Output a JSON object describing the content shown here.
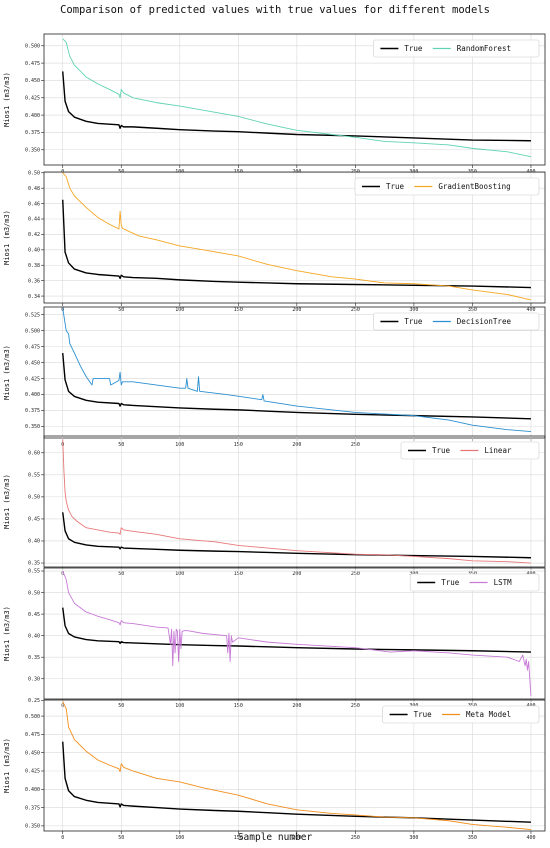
{
  "figure": {
    "title": "Comparison of predicted values with true values for different models",
    "xlabel": "Sample number"
  },
  "chart_data": [
    {
      "type": "line",
      "ylabel": "Mios1 (m3/m3)",
      "xlim": [
        -16,
        412
      ],
      "ylim": [
        0.328,
        0.517
      ],
      "xticks": [
        0,
        50,
        100,
        150,
        200,
        250,
        300,
        350,
        400
      ],
      "yticks": [
        0.35,
        0.375,
        0.4,
        0.425,
        0.45,
        0.475,
        0.5
      ],
      "ytick_labels": [
        "0.350",
        "0.375",
        "0.400",
        "0.425",
        "0.450",
        "0.475",
        "0.500"
      ],
      "grid": true,
      "legend_position": "top-right",
      "series": [
        {
          "name": "True",
          "color": "#000000",
          "x": [
            0,
            2,
            5,
            10,
            20,
            30,
            48,
            49,
            50,
            52,
            60,
            80,
            100,
            130,
            150,
            175,
            200,
            250,
            300,
            350,
            400
          ],
          "y": [
            0.463,
            0.42,
            0.405,
            0.397,
            0.391,
            0.388,
            0.386,
            0.381,
            0.385,
            0.383,
            0.383,
            0.381,
            0.379,
            0.377,
            0.376,
            0.374,
            0.372,
            0.37,
            0.367,
            0.364,
            0.363
          ]
        },
        {
          "name": "RandomForest",
          "color": "#5fd3b3",
          "x": [
            0,
            3,
            6,
            10,
            20,
            30,
            40,
            48,
            49,
            50,
            52,
            60,
            80,
            100,
            120,
            150,
            175,
            200,
            230,
            250,
            275,
            300,
            330,
            350,
            380,
            400
          ],
          "y": [
            0.51,
            0.505,
            0.485,
            0.472,
            0.455,
            0.445,
            0.437,
            0.43,
            0.425,
            0.437,
            0.432,
            0.425,
            0.418,
            0.413,
            0.407,
            0.398,
            0.387,
            0.378,
            0.372,
            0.368,
            0.362,
            0.36,
            0.357,
            0.352,
            0.347,
            0.34
          ]
        }
      ]
    },
    {
      "type": "line",
      "ylabel": "Mios1 (m3/m3)",
      "xlim": [
        -16,
        412
      ],
      "ylim": [
        0.331,
        0.501
      ],
      "xticks": [
        0,
        50,
        100,
        150,
        200,
        250,
        300,
        350,
        400
      ],
      "yticks": [
        0.34,
        0.36,
        0.38,
        0.4,
        0.42,
        0.44,
        0.46,
        0.48,
        0.5
      ],
      "ytick_labels": [
        "0.34",
        "0.36",
        "0.38",
        "0.40",
        "0.42",
        "0.44",
        "0.46",
        "0.48",
        "0.50"
      ],
      "grid": true,
      "legend_position": "top-right",
      "series": [
        {
          "name": "True",
          "color": "#000000",
          "x": [
            0,
            2,
            5,
            10,
            20,
            30,
            48,
            49,
            50,
            52,
            60,
            80,
            100,
            130,
            150,
            175,
            200,
            250,
            300,
            350,
            400
          ],
          "y": [
            0.465,
            0.397,
            0.383,
            0.375,
            0.37,
            0.368,
            0.366,
            0.363,
            0.367,
            0.365,
            0.364,
            0.363,
            0.361,
            0.359,
            0.358,
            0.357,
            0.356,
            0.355,
            0.354,
            0.353,
            0.351
          ]
        },
        {
          "name": "GradientBoosting",
          "color": "#f5a623",
          "x": [
            0,
            3,
            6,
            10,
            20,
            30,
            40,
            48,
            49,
            50,
            51,
            55,
            65,
            80,
            100,
            120,
            150,
            175,
            200,
            230,
            250,
            275,
            300,
            330,
            350,
            380,
            400
          ],
          "y": [
            0.5,
            0.495,
            0.48,
            0.47,
            0.455,
            0.442,
            0.433,
            0.427,
            0.45,
            0.432,
            0.428,
            0.425,
            0.418,
            0.413,
            0.405,
            0.4,
            0.392,
            0.381,
            0.373,
            0.365,
            0.362,
            0.357,
            0.356,
            0.353,
            0.348,
            0.342,
            0.335
          ]
        }
      ]
    },
    {
      "type": "line",
      "ylabel": "Mios1 (m3/m3)",
      "xlim": [
        -16,
        412
      ],
      "ylim": [
        0.332,
        0.537
      ],
      "xticks": [
        0,
        50,
        100,
        150,
        200,
        250,
        300,
        350,
        400
      ],
      "yticks": [
        0.35,
        0.375,
        0.4,
        0.425,
        0.45,
        0.475,
        0.5,
        0.525
      ],
      "ytick_labels": [
        "0.350",
        "0.375",
        "0.400",
        "0.425",
        "0.450",
        "0.475",
        "0.500",
        "0.525"
      ],
      "grid": true,
      "legend_position": "top-right",
      "series": [
        {
          "name": "True",
          "color": "#000000",
          "x": [
            0,
            2,
            5,
            10,
            20,
            30,
            48,
            49,
            50,
            52,
            60,
            80,
            100,
            130,
            150,
            175,
            200,
            250,
            300,
            350,
            400
          ],
          "y": [
            0.465,
            0.423,
            0.405,
            0.397,
            0.391,
            0.388,
            0.386,
            0.382,
            0.386,
            0.384,
            0.383,
            0.381,
            0.379,
            0.377,
            0.376,
            0.374,
            0.372,
            0.369,
            0.367,
            0.365,
            0.362
          ]
        },
        {
          "name": "DecisionTree",
          "color": "#2b8fd1",
          "x": [
            0,
            3,
            5,
            6,
            10,
            15,
            20,
            25,
            26,
            40,
            41,
            48,
            49,
            50,
            51,
            60,
            100,
            105,
            106,
            107,
            115,
            116,
            117,
            140,
            170,
            171,
            172,
            200,
            250,
            300,
            330,
            350,
            380,
            400
          ],
          "y": [
            0.535,
            0.5,
            0.495,
            0.48,
            0.465,
            0.445,
            0.428,
            0.415,
            0.425,
            0.425,
            0.415,
            0.422,
            0.435,
            0.415,
            0.42,
            0.42,
            0.41,
            0.41,
            0.425,
            0.41,
            0.405,
            0.428,
            0.405,
            0.4,
            0.392,
            0.4,
            0.39,
            0.382,
            0.372,
            0.367,
            0.36,
            0.352,
            0.345,
            0.342
          ]
        }
      ]
    },
    {
      "type": "line",
      "ylabel": "Mios1 (m3/m3)",
      "xlim": [
        -16,
        412
      ],
      "ylim": [
        0.341,
        0.638
      ],
      "xticks": [
        0,
        50,
        100,
        150,
        200,
        250,
        300,
        350,
        400
      ],
      "yticks": [
        0.35,
        0.4,
        0.45,
        0.5,
        0.55,
        0.6
      ],
      "ytick_labels": [
        "0.35",
        "0.40",
        "0.45",
        "0.50",
        "0.55",
        "0.60"
      ],
      "grid": true,
      "legend_position": "top-right",
      "series": [
        {
          "name": "True",
          "color": "#000000",
          "x": [
            0,
            2,
            5,
            10,
            20,
            30,
            48,
            49,
            50,
            52,
            60,
            80,
            100,
            130,
            150,
            175,
            200,
            250,
            300,
            350,
            400
          ],
          "y": [
            0.465,
            0.423,
            0.405,
            0.397,
            0.391,
            0.388,
            0.386,
            0.382,
            0.386,
            0.384,
            0.383,
            0.381,
            0.379,
            0.377,
            0.376,
            0.374,
            0.372,
            0.369,
            0.367,
            0.365,
            0.362
          ]
        },
        {
          "name": "Linear",
          "color": "#e87878",
          "x": [
            0,
            1,
            2,
            3,
            5,
            8,
            12,
            20,
            30,
            40,
            48,
            49,
            50,
            52,
            60,
            80,
            100,
            130,
            150,
            200,
            250,
            280,
            300,
            330,
            350,
            380,
            400
          ],
          "y": [
            0.63,
            0.56,
            0.51,
            0.49,
            0.47,
            0.455,
            0.445,
            0.43,
            0.425,
            0.42,
            0.418,
            0.415,
            0.43,
            0.425,
            0.422,
            0.415,
            0.405,
            0.398,
            0.39,
            0.378,
            0.37,
            0.368,
            0.365,
            0.36,
            0.355,
            0.353,
            0.35
          ]
        }
      ]
    },
    {
      "type": "line",
      "ylabel": "Mios1 (m3/m3)",
      "xlim": [
        -16,
        412
      ],
      "ylim": [
        0.253,
        0.557
      ],
      "xticks": [
        0,
        50,
        100,
        150,
        200,
        250,
        300,
        350,
        400
      ],
      "yticks": [
        0.25,
        0.3,
        0.35,
        0.4,
        0.45,
        0.5,
        0.55
      ],
      "ytick_labels": [
        "0.25",
        "0.30",
        "0.35",
        "0.40",
        "0.45",
        "0.50",
        "0.55"
      ],
      "grid": true,
      "legend_position": "top-right",
      "series": [
        {
          "name": "True",
          "color": "#000000",
          "x": [
            0,
            2,
            5,
            10,
            20,
            30,
            48,
            49,
            50,
            52,
            60,
            80,
            100,
            130,
            150,
            175,
            200,
            250,
            300,
            350,
            400
          ],
          "y": [
            0.465,
            0.423,
            0.405,
            0.397,
            0.391,
            0.388,
            0.386,
            0.382,
            0.386,
            0.384,
            0.383,
            0.381,
            0.379,
            0.377,
            0.376,
            0.374,
            0.372,
            0.369,
            0.367,
            0.365,
            0.362
          ]
        },
        {
          "name": "LSTM",
          "color": "#c77ad6",
          "x": [
            0,
            3,
            5,
            10,
            20,
            30,
            40,
            48,
            49,
            50,
            52,
            60,
            80,
            90,
            92,
            93,
            94,
            95,
            96,
            97,
            98,
            99,
            100,
            101,
            102,
            105,
            110,
            120,
            140,
            141,
            142,
            143,
            144,
            145,
            150,
            175,
            200,
            250,
            280,
            300,
            330,
            350,
            380,
            390,
            393,
            395,
            396,
            397,
            398,
            399,
            400
          ],
          "y": [
            0.55,
            0.53,
            0.5,
            0.475,
            0.455,
            0.445,
            0.437,
            0.43,
            0.425,
            0.435,
            0.43,
            0.428,
            0.42,
            0.418,
            0.38,
            0.415,
            0.33,
            0.41,
            0.36,
            0.415,
            0.41,
            0.34,
            0.415,
            0.37,
            0.41,
            0.412,
            0.41,
            0.405,
            0.4,
            0.36,
            0.405,
            0.34,
            0.4,
            0.385,
            0.395,
            0.385,
            0.38,
            0.372,
            0.362,
            0.365,
            0.36,
            0.355,
            0.35,
            0.34,
            0.355,
            0.33,
            0.345,
            0.32,
            0.34,
            0.3,
            0.26
          ]
        }
      ]
    },
    {
      "type": "line",
      "ylabel": "Mios1 (m3/m3)",
      "xlim": [
        -16,
        412
      ],
      "ylim": [
        0.343,
        0.522
      ],
      "xticks": [
        0,
        50,
        100,
        150,
        200,
        250,
        300,
        350,
        400
      ],
      "yticks": [
        0.35,
        0.375,
        0.4,
        0.425,
        0.45,
        0.475,
        0.5
      ],
      "ytick_labels": [
        "0.350",
        "0.375",
        "0.400",
        "0.425",
        "0.450",
        "0.475",
        "0.500"
      ],
      "grid": true,
      "legend_position": "top-right",
      "series": [
        {
          "name": "True",
          "color": "#000000",
          "x": [
            0,
            2,
            5,
            10,
            20,
            30,
            48,
            49,
            50,
            52,
            60,
            80,
            100,
            130,
            150,
            175,
            200,
            250,
            300,
            350,
            400
          ],
          "y": [
            0.465,
            0.415,
            0.398,
            0.39,
            0.385,
            0.382,
            0.38,
            0.376,
            0.38,
            0.378,
            0.377,
            0.375,
            0.373,
            0.371,
            0.37,
            0.368,
            0.366,
            0.363,
            0.361,
            0.358,
            0.355
          ]
        },
        {
          "name": "Meta Model",
          "color": "#f28e1c",
          "x": [
            0,
            3,
            5,
            10,
            20,
            30,
            40,
            48,
            49,
            50,
            52,
            60,
            80,
            100,
            120,
            150,
            175,
            200,
            230,
            250,
            275,
            300,
            330,
            350,
            380,
            400
          ],
          "y": [
            0.52,
            0.51,
            0.485,
            0.468,
            0.452,
            0.44,
            0.433,
            0.428,
            0.424,
            0.435,
            0.43,
            0.425,
            0.415,
            0.41,
            0.402,
            0.392,
            0.38,
            0.372,
            0.367,
            0.365,
            0.362,
            0.361,
            0.357,
            0.352,
            0.348,
            0.345
          ]
        }
      ]
    }
  ]
}
